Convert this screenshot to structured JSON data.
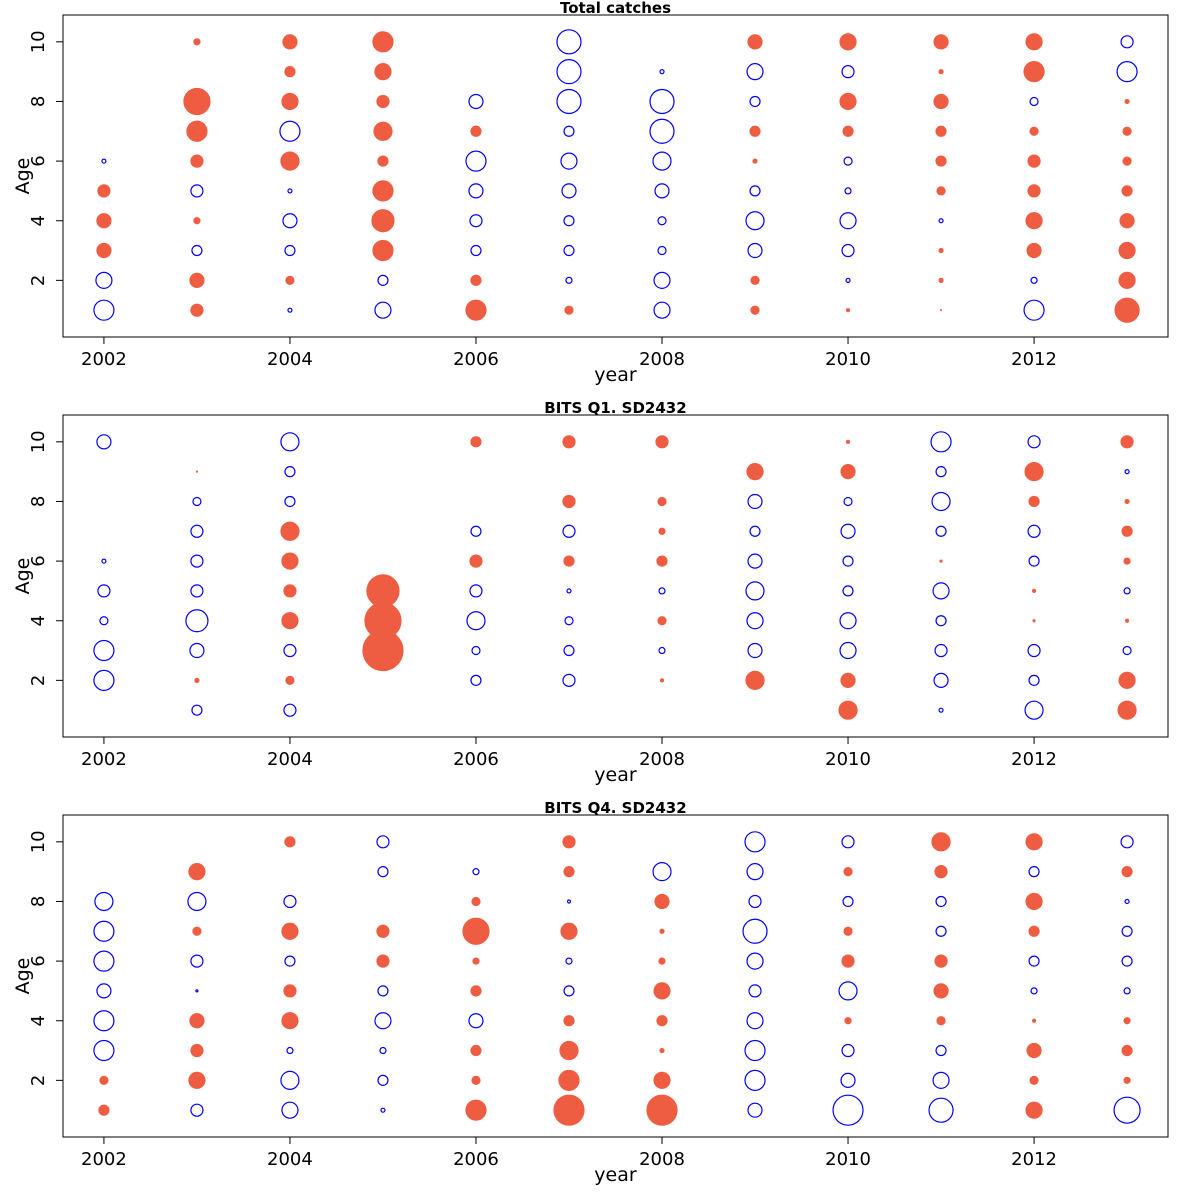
{
  "chart_data": [
    {
      "type": "bubble",
      "title": "Total catches",
      "xlabel": "year",
      "ylabel": "Age",
      "x": [
        2002,
        2003,
        2004,
        2005,
        2006,
        2007,
        2008,
        2009,
        2010,
        2011,
        2012,
        2013
      ],
      "y": [
        1,
        2,
        3,
        4,
        5,
        6,
        7,
        8,
        9,
        10
      ],
      "values": [
        [
          -1.0,
          -0.8,
          0.7,
          0.7,
          0.6,
          -0.2,
          null,
          null,
          null,
          null
        ],
        [
          0.6,
          0.7,
          -0.5,
          0.3,
          -0.6,
          0.6,
          1.0,
          1.3,
          null,
          0.3
        ],
        [
          -0.2,
          0.4,
          -0.5,
          -0.7,
          -0.2,
          0.9,
          -1.0,
          0.8,
          0.5,
          0.7
        ],
        [
          -0.8,
          -0.5,
          1.0,
          1.1,
          1.0,
          0.5,
          0.9,
          0.6,
          0.8,
          1.0
        ],
        [
          1.0,
          0.5,
          -0.5,
          -0.6,
          -0.7,
          -1.0,
          0.5,
          -0.7,
          null,
          null
        ],
        [
          0.4,
          -0.3,
          -0.5,
          -0.5,
          -0.7,
          -0.8,
          -0.5,
          -1.2,
          -1.2,
          -1.2
        ],
        [
          -0.8,
          -0.8,
          -0.4,
          -0.4,
          -0.7,
          -0.9,
          -1.2,
          -1.2,
          -0.2,
          null
        ],
        [
          0.4,
          0.4,
          -0.7,
          -0.9,
          -0.5,
          0.2,
          0.5,
          -0.5,
          -0.8,
          0.7
        ],
        [
          0.15,
          -0.2,
          -0.6,
          -0.8,
          -0.3,
          -0.4,
          0.5,
          0.8,
          -0.6,
          0.8
        ],
        [
          0.05,
          0.2,
          0.2,
          -0.2,
          0.4,
          0.5,
          0.5,
          0.7,
          0.2,
          0.7
        ],
        [
          -1.0,
          -0.3,
          0.7,
          0.8,
          0.6,
          0.6,
          0.4,
          -0.4,
          1.0,
          0.8
        ],
        [
          1.2,
          0.8,
          0.8,
          0.7,
          0.5,
          0.4,
          0.4,
          0.2,
          -1.0,
          -0.6
        ]
      ],
      "xlim": [
        2001.56,
        2013.44
      ],
      "ylim": [
        0.1,
        10.9
      ],
      "xticks": [
        2002,
        2004,
        2006,
        2008,
        2010,
        2012
      ],
      "yticks": [
        2,
        4,
        6,
        8,
        10
      ],
      "positive_color": "#ee5c42",
      "negative_color": "#0000ff"
    },
    {
      "type": "bubble",
      "title": "BITS Q1. SD2432",
      "xlabel": "year",
      "ylabel": "Age",
      "x": [
        2002,
        2003,
        2004,
        2005,
        2006,
        2007,
        2008,
        2009,
        2010,
        2011,
        2012,
        2013
      ],
      "y": [
        1,
        2,
        3,
        4,
        5,
        6,
        7,
        8,
        9,
        10
      ],
      "values": [
        [
          null,
          -1.0,
          -1.0,
          -0.4,
          -0.6,
          -0.2,
          null,
          null,
          null,
          -0.7
        ],
        [
          -0.5,
          0.2,
          -0.7,
          -1.1,
          -0.6,
          -0.6,
          -0.6,
          -0.4,
          0.05,
          null
        ],
        [
          -0.6,
          0.4,
          -0.6,
          0.8,
          0.6,
          0.8,
          0.9,
          -0.5,
          -0.5,
          -0.9
        ],
        [
          null,
          null,
          2.0,
          1.8,
          1.6,
          null,
          null,
          null,
          null,
          null
        ],
        [
          null,
          -0.5,
          -0.4,
          -0.9,
          -0.6,
          0.6,
          -0.5,
          null,
          null,
          0.5
        ],
        [
          null,
          -0.6,
          -0.5,
          -0.4,
          -0.2,
          0.5,
          -0.6,
          0.6,
          null,
          0.6
        ],
        [
          null,
          0.15,
          -0.3,
          0.4,
          -0.3,
          0.5,
          0.3,
          0.4,
          null,
          0.6
        ],
        [
          null,
          0.9,
          -0.7,
          -0.8,
          -0.9,
          -0.7,
          -0.5,
          -0.7,
          0.8,
          null
        ],
        [
          0.9,
          0.7,
          -0.8,
          -0.8,
          -0.5,
          -0.5,
          -0.7,
          -0.4,
          0.7,
          0.15
        ],
        [
          -0.2,
          -0.7,
          -0.6,
          -0.5,
          -0.8,
          0.1,
          -0.5,
          -0.9,
          -0.5,
          -1.0
        ],
        [
          -0.9,
          -0.5,
          -0.6,
          0.1,
          0.15,
          -0.5,
          -0.6,
          0.5,
          0.9,
          -0.6
        ],
        [
          0.9,
          0.8,
          -0.4,
          0.15,
          -0.3,
          0.3,
          0.5,
          0.2,
          -0.2,
          0.6
        ]
      ],
      "xlim": [
        2001.56,
        2013.44
      ],
      "ylim": [
        0.1,
        10.9
      ],
      "xticks": [
        2002,
        2004,
        2006,
        2008,
        2010,
        2012
      ],
      "yticks": [
        2,
        4,
        6,
        8,
        10
      ],
      "positive_color": "#ee5c42",
      "negative_color": "#0000ff"
    },
    {
      "type": "bubble",
      "title": "BITS Q4. SD2432",
      "xlabel": "year",
      "ylabel": "Age",
      "x": [
        2002,
        2003,
        2004,
        2005,
        2006,
        2007,
        2008,
        2009,
        2010,
        2011,
        2012,
        2013
      ],
      "y": [
        1,
        2,
        3,
        4,
        5,
        6,
        7,
        8,
        9,
        10
      ],
      "values": [
        [
          0.5,
          0.4,
          -1.0,
          -1.0,
          -0.7,
          -1.0,
          -1.0,
          -0.9,
          null,
          null
        ],
        [
          -0.6,
          0.8,
          0.6,
          0.7,
          -0.1,
          -0.6,
          0.4,
          -0.9,
          0.8,
          null
        ],
        [
          -0.8,
          -0.9,
          -0.3,
          0.8,
          0.6,
          -0.5,
          0.8,
          -0.6,
          null,
          0.5
        ],
        [
          -0.2,
          -0.5,
          -0.3,
          -0.8,
          -0.5,
          0.6,
          0.6,
          null,
          -0.5,
          -0.6
        ],
        [
          1.0,
          0.4,
          0.5,
          -0.7,
          0.5,
          0.3,
          1.3,
          0.4,
          -0.3,
          null
        ],
        [
          1.5,
          1.0,
          0.9,
          0.5,
          -0.5,
          -0.3,
          0.8,
          -0.15,
          0.5,
          0.6
        ],
        [
          1.5,
          0.8,
          0.2,
          0.5,
          0.8,
          0.3,
          0.2,
          0.7,
          -0.9,
          null
        ],
        [
          -0.7,
          -1.0,
          -1.0,
          -0.8,
          -0.6,
          -0.8,
          -1.2,
          -0.6,
          -0.8,
          -1.0
        ],
        [
          -1.5,
          -0.7,
          -0.6,
          0.3,
          -0.9,
          0.6,
          0.4,
          -0.5,
          0.4,
          -0.6
        ],
        [
          -1.2,
          -0.8,
          -0.5,
          0.4,
          0.7,
          0.6,
          -0.5,
          -0.5,
          0.6,
          0.9
        ],
        [
          0.8,
          0.4,
          0.7,
          0.15,
          -0.3,
          -0.5,
          0.5,
          0.8,
          -0.5,
          0.8
        ],
        [
          -1.3,
          0.3,
          0.5,
          0.3,
          -0.3,
          -0.5,
          -0.5,
          -0.2,
          0.5,
          -0.6
        ]
      ],
      "xlim": [
        2001.56,
        2013.44
      ],
      "ylim": [
        0.1,
        10.9
      ],
      "xticks": [
        2002,
        2004,
        2006,
        2008,
        2010,
        2012
      ],
      "yticks": [
        2,
        4,
        6,
        8,
        10
      ],
      "positive_color": "#ee5c42",
      "negative_color": "#0000ff"
    }
  ]
}
